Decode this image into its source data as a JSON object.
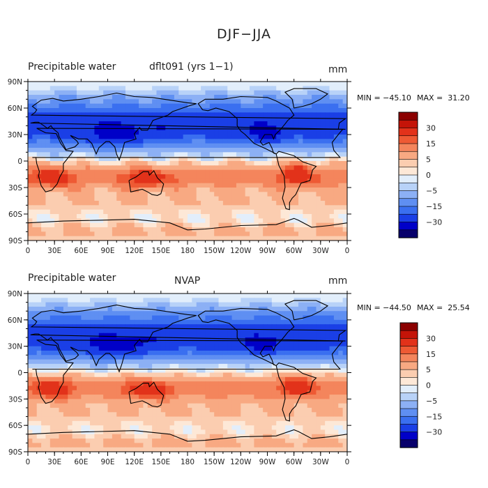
{
  "figure": {
    "title": "DJF−JJA"
  },
  "panels": [
    {
      "left_label": "Precipitable water",
      "center_label": "dflt091 (yrs 1−1)",
      "units": "mm",
      "min_label": "MIN = −45.10",
      "max_label": "MAX =  31.20"
    },
    {
      "left_label": "Precipitable water",
      "center_label": "NVAP",
      "units": "mm",
      "min_label": "MIN = −44.50",
      "max_label": "MAX =  25.54"
    }
  ],
  "axes": {
    "lon_ticks": [
      "0",
      "30E",
      "60E",
      "90E",
      "120E",
      "150E",
      "180",
      "150W",
      "120W",
      "90W",
      "60W",
      "30W",
      "0"
    ],
    "lat_ticks": [
      "90N",
      "60N",
      "30N",
      "0",
      "30S",
      "60S",
      "90S"
    ]
  },
  "colorbar": {
    "colors": [
      "#08006b",
      "#0000c8",
      "#1a3fe6",
      "#3a6ff0",
      "#5f8ff2",
      "#8cb0f5",
      "#b8d2f8",
      "#e2eefb",
      "#fde8d7",
      "#fbcdb0",
      "#f8a982",
      "#f4855c",
      "#ee5a34",
      "#e2321a",
      "#c41408",
      "#8b0000"
    ],
    "labels": [
      "30",
      "15",
      "5",
      "0",
      "−5",
      "−15",
      "−30"
    ]
  },
  "map": {
    "outlines": [
      "continents"
    ]
  }
}
